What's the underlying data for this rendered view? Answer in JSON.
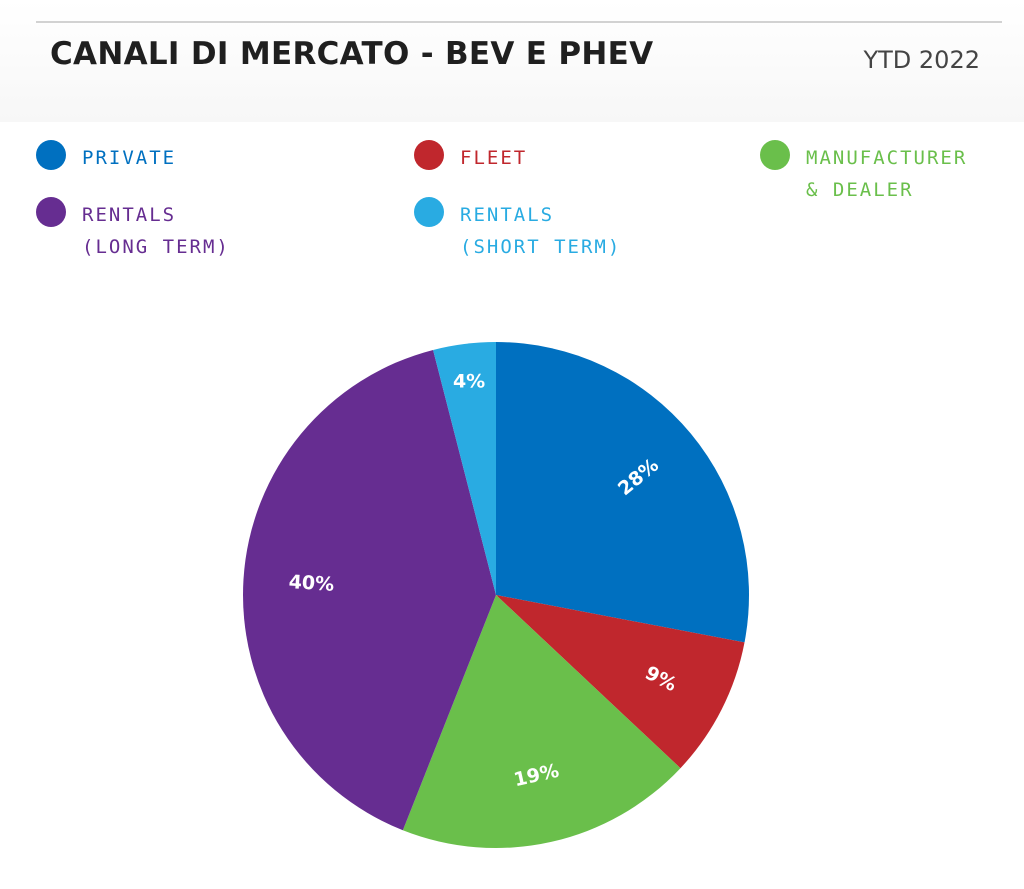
{
  "header": {
    "title": "CANALI DI MERCATO - BEV E PHEV",
    "period": "YTD 2022"
  },
  "chart_data": {
    "type": "pie",
    "title": "CANALI DI MERCATO - BEV E PHEV",
    "subtitle": "YTD 2022",
    "legend_placement": "top",
    "slices": [
      {
        "name": "PRIVATE",
        "value": 28,
        "label": "28%",
        "color": "#0070c0"
      },
      {
        "name": "FLEET",
        "value": 9,
        "label": "9%",
        "color": "#c0272d"
      },
      {
        "name": "MANUFACTURER & DEALER",
        "value": 19,
        "label": "19%",
        "color": "#6abf4b"
      },
      {
        "name": "RENTALS (LONG TERM)",
        "value": 40,
        "label": "40%",
        "color": "#662d91"
      },
      {
        "name": "RENTALS (SHORT TERM)",
        "value": 4,
        "label": "4%",
        "color": "#29abe2"
      }
    ]
  },
  "legend": [
    {
      "lines": [
        "PRIVATE"
      ],
      "color": "#0070c0"
    },
    {
      "lines": [
        "FLEET"
      ],
      "color": "#c0272d"
    },
    {
      "lines": [
        "MANUFACTURER",
        "& DEALER"
      ],
      "color": "#6abf4b"
    },
    {
      "lines": [
        "RENTALS",
        "(LONG TERM)"
      ],
      "color": "#662d91"
    },
    {
      "lines": [
        "RENTALS",
        "(SHORT TERM)"
      ],
      "color": "#29abe2"
    }
  ]
}
